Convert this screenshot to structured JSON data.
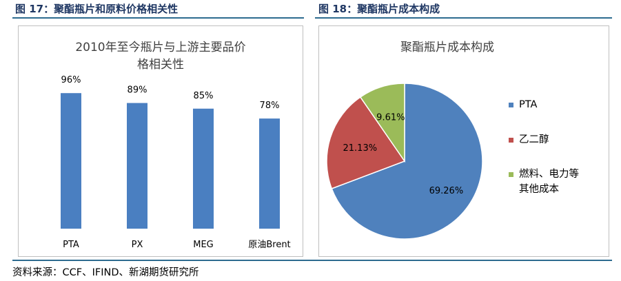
{
  "figure_left": {
    "caption": "图 17：聚酯瓶片和原料价格相关性"
  },
  "figure_right": {
    "caption": "图 18：聚酯瓶片成本构成"
  },
  "source": "资料来源：CCF、IFIND、新湖期货研究所",
  "colors": {
    "rule": "#2d6b8f",
    "bar": "#4a7fc1",
    "pie_blue": "#4f81bd",
    "pie_red": "#c0504d",
    "pie_green": "#9bbb59"
  },
  "chart_data": [
    {
      "type": "bar",
      "title_lines": [
        "2010年至今瓶片与上游主要品价",
        "格相关性"
      ],
      "categories": [
        "PTA",
        "PX",
        "MEG",
        "原油Brent"
      ],
      "values": [
        96,
        89,
        85,
        78
      ],
      "data_labels": [
        "96%",
        "89%",
        "85%",
        "78%"
      ],
      "unit": "%",
      "ylim": [
        0,
        100
      ],
      "grid": false,
      "legend": "none"
    },
    {
      "type": "pie",
      "title": "聚酯瓶片成本构成",
      "slices": [
        {
          "name": "PTA",
          "value": 69.26,
          "label": "69.26%",
          "color": "#4f81bd"
        },
        {
          "name": "乙二醇",
          "value": 21.13,
          "label": "21.13%",
          "color": "#c0504d"
        },
        {
          "name": "燃料、电力等其他成本",
          "legend_lines": [
            "燃料、电力等",
            "其他成本"
          ],
          "value": 9.61,
          "label": "9.61%",
          "color": "#9bbb59"
        }
      ],
      "legend": "right"
    }
  ]
}
